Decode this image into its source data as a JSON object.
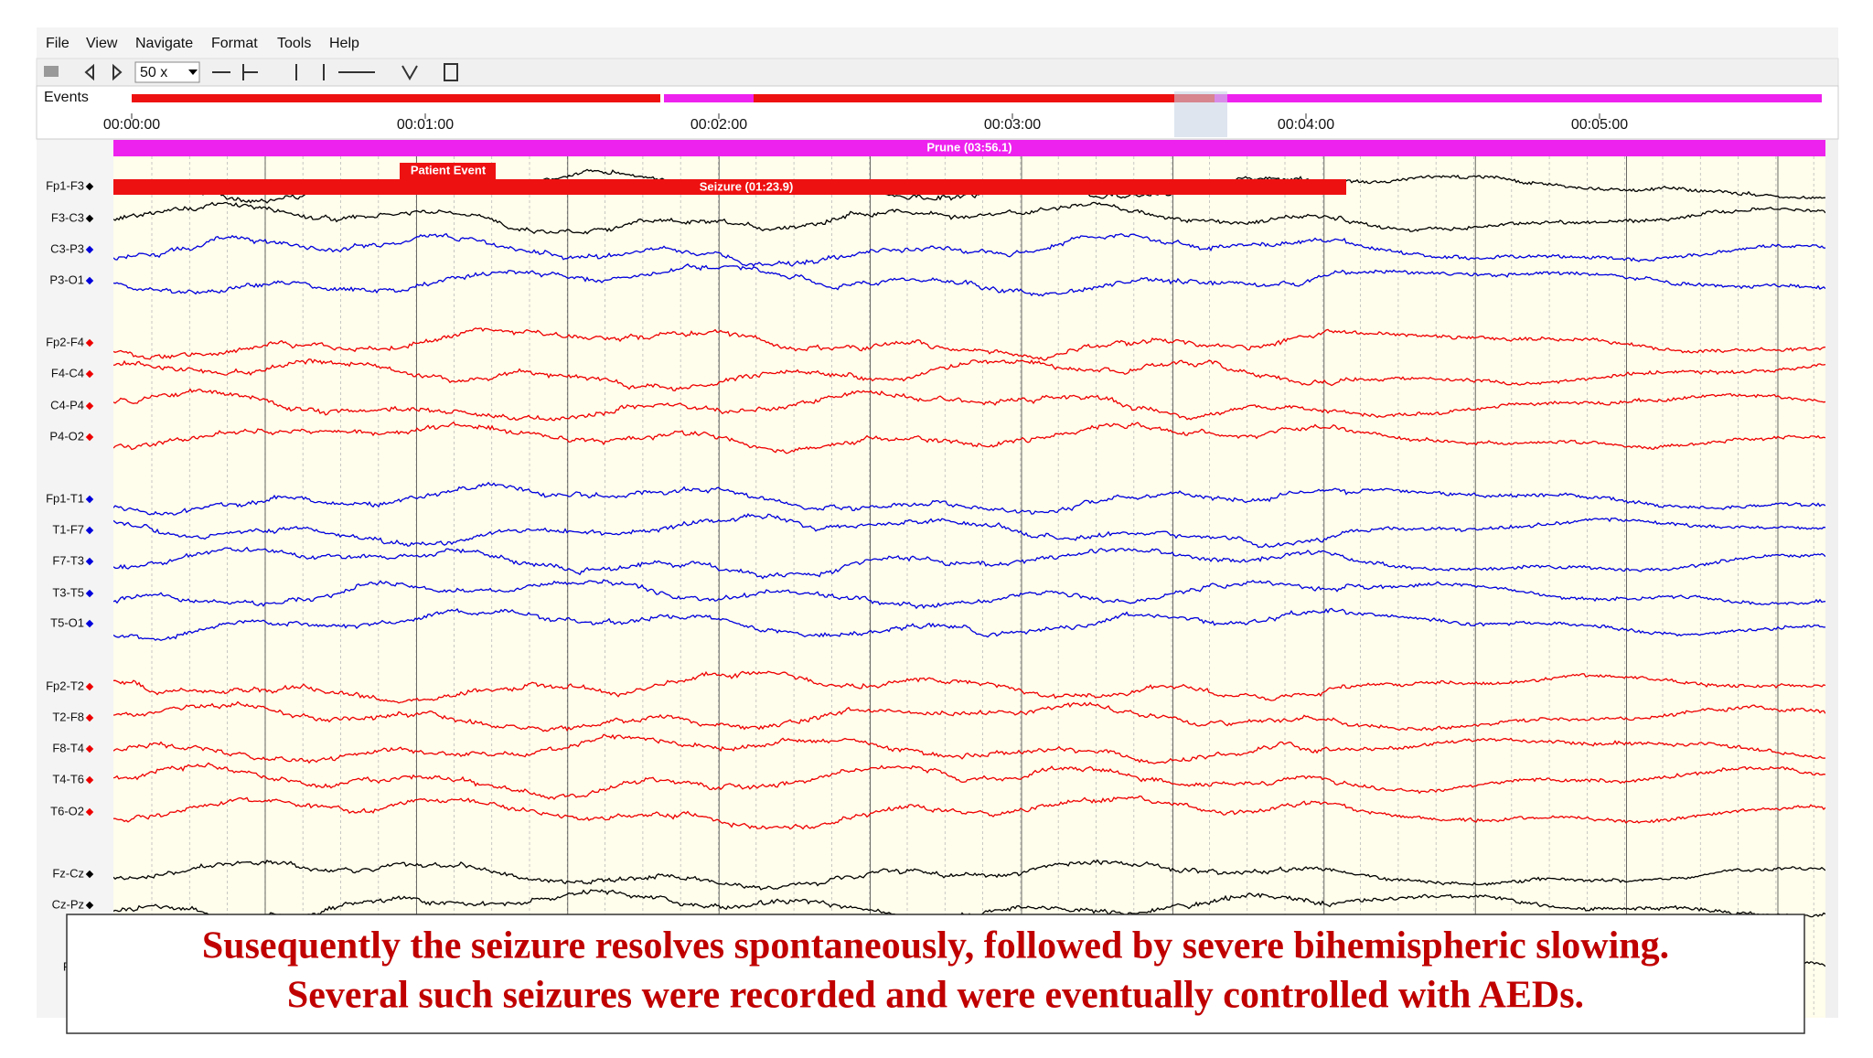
{
  "menu": [
    "File",
    "View",
    "Navigate",
    "Format",
    "Tools",
    "Help"
  ],
  "toolbar": {
    "zoom": "50 x"
  },
  "events": {
    "label": "Events"
  },
  "timeline": [
    "00:00:00",
    "00:01:00",
    "00:02:00",
    "00:03:00",
    "00:04:00",
    "00:05:00"
  ],
  "annotations": {
    "prune": "Prune (03:56.1)",
    "patient_event": "Patient Event",
    "seizure": "Seizure (01:23.9)"
  },
  "channels": [
    {
      "label": "Fp1-F3",
      "color": "#000000"
    },
    {
      "label": "F3-C3",
      "color": "#000000"
    },
    {
      "label": "C3-P3",
      "color": "#0000dd"
    },
    {
      "label": "P3-O1",
      "color": "#0000dd"
    },
    {
      "label": "Fp2-F4",
      "color": "#ee0000"
    },
    {
      "label": "F4-C4",
      "color": "#ee0000"
    },
    {
      "label": "C4-P4",
      "color": "#ee0000"
    },
    {
      "label": "P4-O2",
      "color": "#ee0000"
    },
    {
      "label": "Fp1-T1",
      "color": "#0000dd"
    },
    {
      "label": "T1-F7",
      "color": "#0000dd"
    },
    {
      "label": "F7-T3",
      "color": "#0000dd"
    },
    {
      "label": "T3-T5",
      "color": "#0000dd"
    },
    {
      "label": "T5-O1",
      "color": "#0000dd"
    },
    {
      "label": "Fp2-T2",
      "color": "#ee0000"
    },
    {
      "label": "T2-F8",
      "color": "#ee0000"
    },
    {
      "label": "F8-T4",
      "color": "#ee0000"
    },
    {
      "label": "T4-T6",
      "color": "#ee0000"
    },
    {
      "label": "T6-O2",
      "color": "#ee0000"
    },
    {
      "label": "Fz-Cz",
      "color": "#000000"
    },
    {
      "label": "Cz-Pz",
      "color": "#000000"
    },
    {
      "label": "Pho",
      "color": "#000000"
    }
  ],
  "caption": [
    "Susequently the seizure resolves spontaneously, followed by severe bihemispheric slowing.",
    "Several such seizures were recorded and were eventually controlled with AEDs."
  ]
}
